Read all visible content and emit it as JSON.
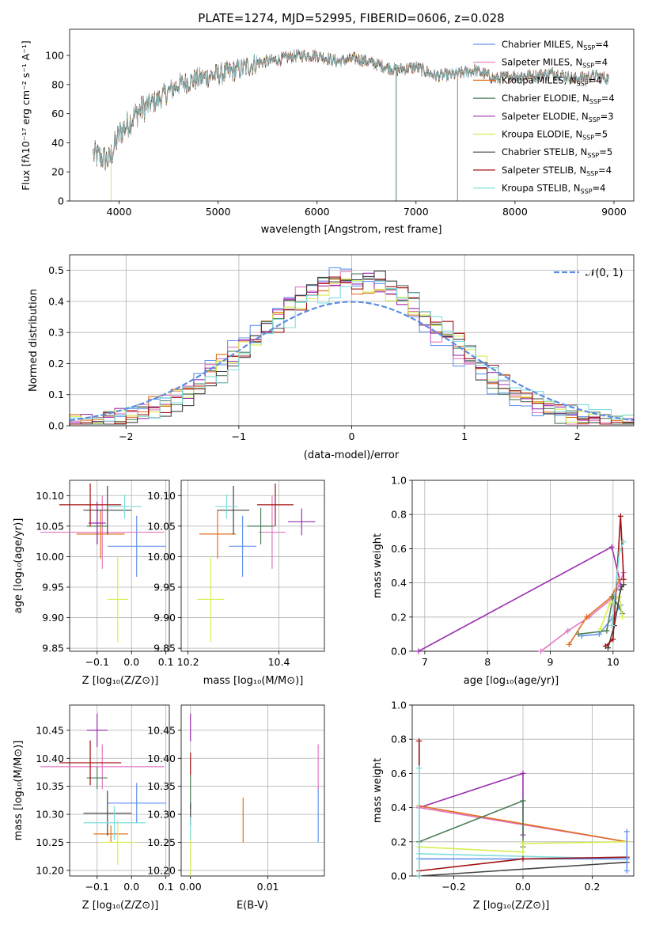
{
  "colors": {
    "chabrier_miles": "#6495ED",
    "salpeter_miles": "#E377C2",
    "kroupa_miles": "#E07020",
    "chabrier_elodie": "#4E7F5A",
    "salpeter_elodie": "#9B30B0",
    "kroupa_elodie": "#D8EE50",
    "chabrier_stelib": "#444444",
    "salpeter_stelib": "#A01010",
    "kroupa_stelib": "#7FDDDD",
    "normal": "#5B8EE0"
  },
  "chart_data": [
    {
      "id": "spectrum",
      "type": "line",
      "title": "PLATE=1274, MJD=52995, FIBERID=0606, z=0.028",
      "xlabel": "wavelength [Angstrom, rest frame]",
      "ylabel": "Flux [fλ10⁻¹⁷ erg cm⁻² s⁻¹ A⁻¹]",
      "xlim": [
        3500,
        9200
      ],
      "ylim": [
        0,
        118
      ],
      "xticks": [
        "4000",
        "5000",
        "6000",
        "7000",
        "8000",
        "9000"
      ],
      "yticks": [
        "0",
        "20",
        "40",
        "60",
        "80",
        "100"
      ],
      "grid": false,
      "legend": "top-right",
      "continuum": [
        [
          3740,
          32
        ],
        [
          3900,
          28
        ],
        [
          4000,
          46
        ],
        [
          4200,
          62
        ],
        [
          4400,
          70
        ],
        [
          4600,
          80
        ],
        [
          4800,
          84
        ],
        [
          5000,
          87
        ],
        [
          5200,
          90
        ],
        [
          5400,
          95
        ],
        [
          5600,
          97
        ],
        [
          5800,
          100
        ],
        [
          6000,
          100
        ],
        [
          6200,
          96
        ],
        [
          6400,
          98
        ],
        [
          6600,
          94
        ],
        [
          6800,
          90
        ],
        [
          7000,
          92
        ],
        [
          7200,
          86
        ],
        [
          7400,
          87
        ],
        [
          7600,
          90
        ],
        [
          7800,
          84
        ],
        [
          8000,
          86
        ],
        [
          8200,
          86
        ],
        [
          8400,
          88
        ],
        [
          8600,
          84
        ],
        [
          8800,
          86
        ],
        [
          8950,
          84
        ]
      ],
      "spikes": [
        {
          "series": "Kroupa ELODIE",
          "x": 3920,
          "y": 0
        },
        {
          "series": "Chabrier ELODIE",
          "x": 6800,
          "y": 0
        },
        {
          "series": "Kroupa MILES",
          "x": 7420,
          "y": 0
        }
      ],
      "series": [
        {
          "name": "Chabrier MILES, N_SSP=4",
          "color_key": "chabrier_miles"
        },
        {
          "name": "Salpeter MILES, N_SSP=4",
          "color_key": "salpeter_miles"
        },
        {
          "name": "Kroupa MILES, N_SSP=4",
          "color_key": "kroupa_miles"
        },
        {
          "name": "Chabrier ELODIE, N_SSP=4",
          "color_key": "chabrier_elodie"
        },
        {
          "name": "Salpeter ELODIE, N_SSP=3",
          "color_key": "salpeter_elodie"
        },
        {
          "name": "Kroupa ELODIE, N_SSP=5",
          "color_key": "kroupa_elodie"
        },
        {
          "name": "Chabrier STELIB, N_SSP=5",
          "color_key": "chabrier_stelib"
        },
        {
          "name": "Salpeter STELIB, N_SSP=4",
          "color_key": "salpeter_stelib"
        },
        {
          "name": "Kroupa STELIB, N_SSP=4",
          "color_key": "kroupa_stelib"
        }
      ]
    },
    {
      "id": "residuals",
      "type": "histogram",
      "xlabel": "(data-model)/error",
      "ylabel": "Normed distribution",
      "xlim": [
        -2.5,
        2.5
      ],
      "ylim": [
        0,
        0.55
      ],
      "xticks": [
        "−2",
        "−1",
        "0",
        "1",
        "2"
      ],
      "xtick_values": [
        -2,
        -1,
        0,
        1,
        2
      ],
      "yticks": [
        "0.0",
        "0.1",
        "0.2",
        "0.3",
        "0.4",
        "0.5"
      ],
      "grid": true,
      "legend": "top-right",
      "legend_label": "𝒩(0, 1)",
      "bin_width": 0.1,
      "bin_start": -2.5
    },
    {
      "id": "z-age",
      "type": "errorbar",
      "xlabel": "Z [log₁₀(Z/Z⊙)]",
      "ylabel": "age  [log₁₀(age/yr)]",
      "xlim": [
        -0.18,
        0.11
      ],
      "ylim": [
        9.845,
        10.125
      ],
      "xticks": [
        "−0.1",
        "0.0",
        "0.1"
      ],
      "yticks": [
        "9.85",
        "9.90",
        "9.95",
        "10.00",
        "10.05",
        "10.10"
      ],
      "grid": true,
      "points": [
        {
          "color_key": "chabrier_miles",
          "x": 0.015,
          "xerr": 0.085,
          "y": 10.017,
          "yerr": 0.05
        },
        {
          "color_key": "salpeter_miles",
          "x": -0.085,
          "xerr": 0.18,
          "y": 10.04,
          "yerr": 0.06
        },
        {
          "color_key": "kroupa_miles",
          "x": -0.09,
          "xerr": 0.07,
          "y": 10.037,
          "yerr": 0.04
        },
        {
          "color_key": "chabrier_elodie",
          "x": -0.1,
          "xerr": 0.03,
          "y": 10.05,
          "yerr": 0.03
        },
        {
          "color_key": "salpeter_elodie",
          "x": -0.1,
          "xerr": 0.025,
          "y": 10.055,
          "yerr": 0.035
        },
        {
          "color_key": "kroupa_elodie",
          "x": -0.04,
          "xerr": 0.03,
          "y": 9.93,
          "yerr": 0.07
        },
        {
          "color_key": "chabrier_stelib",
          "x": -0.07,
          "xerr": 0.07,
          "y": 10.076,
          "yerr": 0.04
        },
        {
          "color_key": "salpeter_stelib",
          "x": -0.12,
          "xerr": 0.09,
          "y": 10.085,
          "yerr": 0.035
        },
        {
          "color_key": "kroupa_stelib",
          "x": -0.02,
          "xerr": 0.05,
          "y": 10.082,
          "yerr": 0.02
        }
      ]
    },
    {
      "id": "mass-age",
      "type": "errorbar",
      "xlabel": "mass [log₁₀(M/M⊙)]",
      "xlim": [
        10.185,
        10.5
      ],
      "ylim": [
        9.845,
        10.125
      ],
      "xticks": [
        "10.2",
        "10.4"
      ],
      "xtick_values": [
        10.2,
        10.4
      ],
      "yticks": [
        "9.85",
        "9.90",
        "9.95",
        "10.00",
        "10.05",
        "10.10"
      ],
      "grid": true,
      "points": [
        {
          "color_key": "chabrier_miles",
          "x": 10.32,
          "xerr": 0.03,
          "y": 10.017,
          "yerr": 0.05
        },
        {
          "color_key": "salpeter_miles",
          "x": 10.385,
          "xerr": 0.03,
          "y": 10.04,
          "yerr": 0.06
        },
        {
          "color_key": "kroupa_miles",
          "x": 10.265,
          "xerr": 0.04,
          "y": 10.037,
          "yerr": 0.04
        },
        {
          "color_key": "chabrier_elodie",
          "x": 10.36,
          "xerr": 0.03,
          "y": 10.05,
          "yerr": 0.03
        },
        {
          "color_key": "salpeter_elodie",
          "x": 10.45,
          "xerr": 0.03,
          "y": 10.057,
          "yerr": 0.022
        },
        {
          "color_key": "kroupa_elodie",
          "x": 10.25,
          "xerr": 0.03,
          "y": 9.93,
          "yerr": 0.07
        },
        {
          "color_key": "chabrier_stelib",
          "x": 10.3,
          "xerr": 0.035,
          "y": 10.076,
          "yerr": 0.04
        },
        {
          "color_key": "salpeter_stelib",
          "x": 10.392,
          "xerr": 0.04,
          "y": 10.085,
          "yerr": 0.035
        },
        {
          "color_key": "kroupa_stelib",
          "x": 10.285,
          "xerr": 0.025,
          "y": 10.082,
          "yerr": 0.02
        }
      ]
    },
    {
      "id": "age-weight",
      "type": "line",
      "xlabel": "age  [log₁₀(age/yr)]",
      "ylabel": "mass weight",
      "xlim": [
        6.8,
        10.33
      ],
      "ylim": [
        0,
        1
      ],
      "xticks": [
        "7",
        "8",
        "9",
        "10"
      ],
      "xtick_values": [
        7,
        8,
        9,
        10
      ],
      "yticks": [
        "0.0",
        "0.2",
        "0.4",
        "0.6",
        "0.8",
        "1.0"
      ],
      "grid": true,
      "series": [
        {
          "color_key": "salpeter_elodie",
          "points": [
            [
              6.9,
              0.0
            ],
            [
              9.98,
              0.61
            ],
            [
              10.13,
              0.38
            ]
          ]
        },
        {
          "color_key": "salpeter_miles",
          "points": [
            [
              8.85,
              0.0
            ],
            [
              9.28,
              0.12
            ],
            [
              9.62,
              0.2
            ],
            [
              10.02,
              0.32
            ],
            [
              10.17,
              0.46
            ]
          ]
        },
        {
          "color_key": "kroupa_miles",
          "points": [
            [
              9.3,
              0.04
            ],
            [
              9.58,
              0.2
            ],
            [
              9.98,
              0.32
            ],
            [
              10.1,
              0.42
            ]
          ]
        },
        {
          "color_key": "chabrier_miles",
          "points": [
            [
              9.5,
              0.09
            ],
            [
              9.78,
              0.1
            ],
            [
              10.0,
              0.2
            ],
            [
              10.12,
              0.27
            ]
          ]
        },
        {
          "color_key": "chabrier_elodie",
          "points": [
            [
              9.45,
              0.1
            ],
            [
              9.9,
              0.12
            ],
            [
              10.0,
              0.32
            ],
            [
              10.15,
              0.22
            ]
          ]
        },
        {
          "color_key": "kroupa_elodie",
          "points": [
            [
              9.8,
              0.13
            ],
            [
              9.95,
              0.28
            ],
            [
              10.1,
              0.32
            ],
            [
              10.15,
              0.2
            ]
          ]
        },
        {
          "color_key": "chabrier_stelib",
          "points": [
            [
              9.92,
              0.02
            ],
            [
              10.02,
              0.15
            ],
            [
              10.12,
              0.36
            ],
            [
              10.17,
              0.39
            ]
          ]
        },
        {
          "color_key": "salpeter_stelib",
          "points": [
            [
              9.88,
              0.03
            ],
            [
              10.0,
              0.07
            ],
            [
              10.12,
              0.79
            ],
            [
              10.17,
              0.42
            ]
          ]
        },
        {
          "color_key": "kroupa_stelib",
          "points": [
            [
              9.98,
              0.15
            ],
            [
              10.1,
              0.58
            ],
            [
              10.17,
              0.64
            ]
          ]
        }
      ]
    },
    {
      "id": "z-mass",
      "type": "errorbar",
      "xlabel": "Z [log₁₀(Z/Z⊙)]",
      "ylabel": "mass [log₁₀(M/M⊙)]",
      "xlim": [
        -0.18,
        0.11
      ],
      "ylim": [
        10.19,
        10.495
      ],
      "xticks": [
        "−0.1",
        "0.0",
        "0.1"
      ],
      "yticks": [
        "10.20",
        "10.25",
        "10.30",
        "10.35",
        "10.40",
        "10.45"
      ],
      "grid": true,
      "points": [
        {
          "color_key": "chabrier_miles",
          "x": 0.015,
          "xerr": 0.085,
          "y": 10.32,
          "yerr": 0.036
        },
        {
          "color_key": "salpeter_miles",
          "x": -0.085,
          "xerr": 0.18,
          "y": 10.385,
          "yerr": 0.04
        },
        {
          "color_key": "kroupa_miles",
          "x": -0.06,
          "xerr": 0.05,
          "y": 10.265,
          "yerr": 0.015
        },
        {
          "color_key": "chabrier_elodie",
          "x": -0.1,
          "xerr": 0.03,
          "y": 10.365,
          "yerr": 0.02
        },
        {
          "color_key": "salpeter_elodie",
          "x": -0.1,
          "xerr": 0.03,
          "y": 10.45,
          "yerr": 0.03
        },
        {
          "color_key": "kroupa_elodie",
          "x": -0.04,
          "xerr": 0.05,
          "y": 10.25,
          "yerr": 0.04
        },
        {
          "color_key": "chabrier_stelib",
          "x": -0.07,
          "xerr": 0.07,
          "y": 10.302,
          "yerr": 0.04
        },
        {
          "color_key": "salpeter_stelib",
          "x": -0.12,
          "xerr": 0.09,
          "y": 10.392,
          "yerr": 0.04
        },
        {
          "color_key": "kroupa_stelib",
          "x": -0.05,
          "xerr": 0.09,
          "y": 10.285,
          "yerr": 0.03
        }
      ]
    },
    {
      "id": "ebv-mass",
      "type": "errorbar",
      "xlabel": "E(B-V)",
      "xlim": [
        -0.0012,
        0.0173
      ],
      "ylim": [
        10.19,
        10.495
      ],
      "xticks": [
        "0.00",
        "0.01"
      ],
      "xtick_values": [
        0,
        0.01
      ],
      "yticks": [
        "10.20",
        "10.25",
        "10.30",
        "10.35",
        "10.40",
        "10.45"
      ],
      "grid": true,
      "points": [
        {
          "color_key": "chabrier_miles",
          "x": 0.0165,
          "xerr": 0,
          "y": 10.3,
          "yerr": 0.05
        },
        {
          "color_key": "salpeter_miles",
          "x": 0.0165,
          "xerr": 0,
          "y": 10.385,
          "yerr": 0.04
        },
        {
          "color_key": "kroupa_miles",
          "x": 0.0068,
          "xerr": 0,
          "y": 10.29,
          "yerr": 0.04
        },
        {
          "color_key": "chabrier_elodie",
          "x": 0.0,
          "xerr": 0,
          "y": 10.34,
          "yerr": 0.03
        },
        {
          "color_key": "salpeter_elodie",
          "x": 0.0,
          "xerr": 0,
          "y": 10.455,
          "yerr": 0.025
        },
        {
          "color_key": "kroupa_elodie",
          "x": 0.0,
          "xerr": 0,
          "y": 10.23,
          "yerr": 0.04
        },
        {
          "color_key": "chabrier_stelib",
          "x": 0.0,
          "xerr": 0,
          "y": 10.3,
          "yerr": 0.02
        },
        {
          "color_key": "salpeter_stelib",
          "x": 0.0,
          "xerr": 0,
          "y": 10.39,
          "yerr": 0.02
        },
        {
          "color_key": "kroupa_stelib",
          "x": 0.0,
          "xerr": 0,
          "y": 10.275,
          "yerr": 0.02
        }
      ]
    },
    {
      "id": "z-weight",
      "type": "line",
      "xlabel": "Z [log₁₀(Z/Z⊙)]",
      "ylabel": "mass weight",
      "xlim": [
        -0.32,
        0.32
      ],
      "ylim": [
        0,
        1
      ],
      "xticks": [
        "−0.2",
        "0.0",
        "0.2"
      ],
      "xtick_values": [
        -0.2,
        0,
        0.2
      ],
      "yticks": [
        "0.0",
        "0.2",
        "0.4",
        "0.6",
        "0.8",
        "1.0"
      ],
      "grid": true,
      "series": [
        {
          "color_key": "salpeter_elodie",
          "points": [
            [
              -0.3,
              0.4
            ],
            [
              0.0,
              0.6
            ],
            [
              0.0,
              0.24
            ]
          ]
        },
        {
          "color_key": "salpeter_miles",
          "points": [
            [
              -0.3,
              0.4
            ],
            [
              0.3,
              0.2
            ]
          ]
        },
        {
          "color_key": "kroupa_miles",
          "points": [
            [
              -0.3,
              0.41
            ],
            [
              0.3,
              0.2
            ]
          ]
        },
        {
          "color_key": "chabrier_elodie",
          "points": [
            [
              -0.3,
              0.2
            ],
            [
              0.0,
              0.44
            ],
            [
              0.0,
              0.17
            ]
          ]
        },
        {
          "color_key": "kroupa_elodie",
          "points": [
            [
              -0.3,
              0.17
            ],
            [
              0.0,
              0.14
            ],
            [
              0.0,
              0.19
            ],
            [
              0.3,
              0.2
            ]
          ]
        },
        {
          "color_key": "kroupa_stelib",
          "points": [
            [
              -0.3,
              0.13
            ],
            [
              0.3,
              0.1
            ]
          ]
        },
        {
          "color_key": "chabrier_miles",
          "points": [
            [
              -0.3,
              0.1
            ],
            [
              0.3,
              0.1
            ]
          ]
        },
        {
          "color_key": "chabrier_stelib",
          "points": [
            [
              -0.3,
              0.0
            ],
            [
              0.3,
              0.08
            ]
          ]
        },
        {
          "color_key": "salpeter_stelib",
          "points": [
            [
              -0.3,
              0.03
            ],
            [
              0.0,
              0.1
            ],
            [
              0.3,
              0.11
            ]
          ]
        },
        {
          "color_key": "salpeter_stelib",
          "points": [
            [
              -0.3,
              0.0
            ],
            [
              -0.3,
              0.79
            ]
          ]
        },
        {
          "color_key": "kroupa_stelib",
          "points": [
            [
              -0.3,
              0.0
            ],
            [
              -0.3,
              0.63
            ]
          ]
        },
        {
          "color_key": "chabrier_miles",
          "points": [
            [
              0.3,
              0.03
            ],
            [
              0.3,
              0.26
            ]
          ]
        }
      ]
    }
  ]
}
